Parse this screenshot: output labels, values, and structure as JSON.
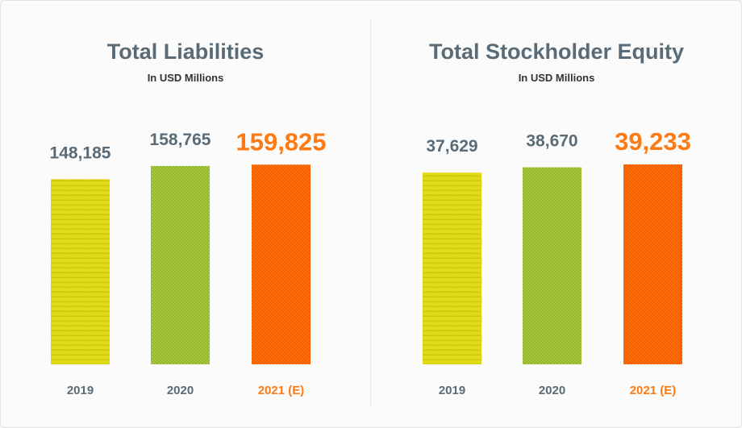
{
  "chart_data": [
    {
      "type": "bar",
      "title": "Total Liabilities",
      "subtitle": "In USD Millions",
      "categories": [
        "2019",
        "2020",
        "2021 (E)"
      ],
      "values": [
        148185,
        158765,
        159825
      ],
      "value_labels": [
        "148,185",
        "158,765",
        "159,825"
      ],
      "highlight_index": 2,
      "ylim": [
        0,
        160000
      ],
      "colors": [
        "#e0da14",
        "#a3c53c",
        "#ff6a00"
      ]
    },
    {
      "type": "bar",
      "title": "Total Stockholder Equity",
      "subtitle": "In USD Millions",
      "categories": [
        "2019",
        "2020",
        "2021 (E)"
      ],
      "values": [
        37629,
        38670,
        39233
      ],
      "value_labels": [
        "37,629",
        "38,670",
        "39,233"
      ],
      "highlight_index": 2,
      "ylim": [
        0,
        39233
      ],
      "colors": [
        "#e0da14",
        "#a3c53c",
        "#ff6a00"
      ]
    }
  ]
}
